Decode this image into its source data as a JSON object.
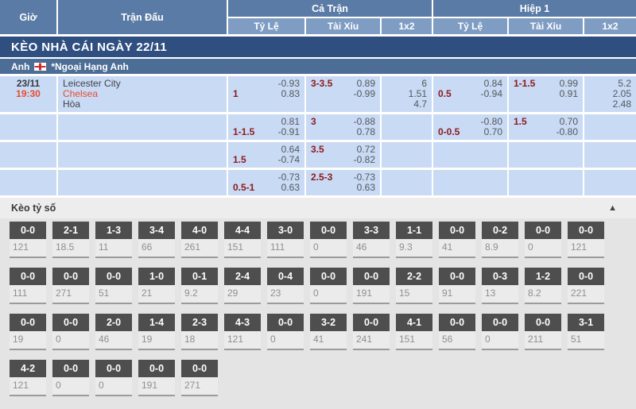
{
  "header": {
    "col_time": "Giờ",
    "col_match": "Trận Đấu",
    "group_full": "Cả Trận",
    "group_half": "Hiệp 1",
    "sub_handicap": "Tỷ Lệ",
    "sub_overunder": "Tài Xỉu",
    "sub_1x2": "1x2"
  },
  "banner": {
    "title": "KÈO NHÀ CÁI NGÀY 22/11"
  },
  "league_bar": {
    "country": "Anh",
    "flag_icon": "england-flag",
    "league": "*Ngoại Hạng Anh"
  },
  "match": {
    "date": "23/11",
    "time": "19:30",
    "home": "Leicester City",
    "away": "Chelsea",
    "draw_label": "Hòa"
  },
  "colors": {
    "header_blue": "#5a7ba6",
    "subheader_blue": "#7f9dc3",
    "banner_navy": "#2f4f80",
    "league_blue": "#4c6d96",
    "cell_blue": "#c8daf4",
    "handicap_maroon": "#8e191d",
    "odds_gray": "#55585c",
    "accent_red": "#e74c32",
    "box_header_gray": "#4e4e4e"
  },
  "odds_rows": [
    {
      "ft": {
        "hdp": {
          "point": "1",
          "o1": "-0.93",
          "o2": "0.83"
        },
        "ou": {
          "point": "3-3.5",
          "o1": "0.89",
          "o2": "-0.99"
        },
        "x12": [
          "6",
          "1.51",
          "4.7"
        ]
      },
      "h1": {
        "hdp": {
          "point": "0.5",
          "o1": "0.84",
          "o2": "-0.94"
        },
        "ou": {
          "point": "1-1.5",
          "o1": "0.99",
          "o2": "0.91"
        },
        "x12": [
          "5.2",
          "2.05",
          "2.48"
        ]
      }
    },
    {
      "ft": {
        "hdp": {
          "point": "1-1.5",
          "o1": "0.81",
          "o2": "-0.91"
        },
        "ou": {
          "point": "3",
          "o1": "-0.88",
          "o2": "0.78"
        },
        "x12": []
      },
      "h1": {
        "hdp": {
          "point": "0-0.5",
          "o1": "-0.80",
          "o2": "0.70"
        },
        "ou": {
          "point": "1.5",
          "o1": "0.70",
          "o2": "-0.80"
        },
        "x12": []
      }
    },
    {
      "ft": {
        "hdp": {
          "point": "1.5",
          "o1": "0.64",
          "o2": "-0.74"
        },
        "ou": {
          "point": "3.5",
          "o1": "0.72",
          "o2": "-0.82"
        },
        "x12": []
      },
      "h1": {
        "hdp": null,
        "ou": null,
        "x12": []
      }
    },
    {
      "ft": {
        "hdp": {
          "point": "0.5-1",
          "o1": "-0.73",
          "o2": "0.63"
        },
        "ou": {
          "point": "2.5-3",
          "o1": "-0.73",
          "o2": "0.63"
        },
        "x12": []
      },
      "h1": {
        "hdp": null,
        "ou": null,
        "x12": []
      }
    }
  ],
  "score_section": {
    "title": "Kèo tỷ số",
    "collapse_icon": "▲",
    "rows": [
      [
        {
          "score": "0-0",
          "value": "121"
        },
        {
          "score": "2-1",
          "value": "18.5"
        },
        {
          "score": "1-3",
          "value": "11"
        },
        {
          "score": "3-4",
          "value": "66"
        },
        {
          "score": "4-0",
          "value": "261"
        },
        {
          "score": "4-4",
          "value": "151"
        },
        {
          "score": "3-0",
          "value": "111"
        },
        {
          "score": "0-0",
          "value": "0"
        },
        {
          "score": "3-3",
          "value": "46"
        },
        {
          "score": "1-1",
          "value": "9.3"
        },
        {
          "score": "0-0",
          "value": "41"
        },
        {
          "score": "0-2",
          "value": "8.9"
        },
        {
          "score": "0-0",
          "value": "0"
        },
        {
          "score": "0-0",
          "value": "121"
        }
      ],
      [
        {
          "score": "0-0",
          "value": "111"
        },
        {
          "score": "0-0",
          "value": "271"
        },
        {
          "score": "0-0",
          "value": "51"
        },
        {
          "score": "1-0",
          "value": "21"
        },
        {
          "score": "0-1",
          "value": "9.2"
        },
        {
          "score": "2-4",
          "value": "29"
        },
        {
          "score": "0-4",
          "value": "23"
        },
        {
          "score": "0-0",
          "value": "0"
        },
        {
          "score": "0-0",
          "value": "191"
        },
        {
          "score": "2-2",
          "value": "15"
        },
        {
          "score": "0-0",
          "value": "91"
        },
        {
          "score": "0-3",
          "value": "13"
        },
        {
          "score": "1-2",
          "value": "8.2"
        },
        {
          "score": "0-0",
          "value": "221"
        }
      ],
      [
        {
          "score": "0-0",
          "value": "19"
        },
        {
          "score": "0-0",
          "value": "0"
        },
        {
          "score": "2-0",
          "value": "46"
        },
        {
          "score": "1-4",
          "value": "19"
        },
        {
          "score": "2-3",
          "value": "18"
        },
        {
          "score": "4-3",
          "value": "121"
        },
        {
          "score": "0-0",
          "value": "0"
        },
        {
          "score": "3-2",
          "value": "41"
        },
        {
          "score": "0-0",
          "value": "241"
        },
        {
          "score": "4-1",
          "value": "151"
        },
        {
          "score": "0-0",
          "value": "56"
        },
        {
          "score": "0-0",
          "value": "0"
        },
        {
          "score": "0-0",
          "value": "211"
        },
        {
          "score": "3-1",
          "value": "51"
        }
      ],
      [
        {
          "score": "4-2",
          "value": "121"
        },
        {
          "score": "0-0",
          "value": "0"
        },
        {
          "score": "0-0",
          "value": "0"
        },
        {
          "score": "0-0",
          "value": "191"
        },
        {
          "score": "0-0",
          "value": "271"
        }
      ]
    ]
  }
}
